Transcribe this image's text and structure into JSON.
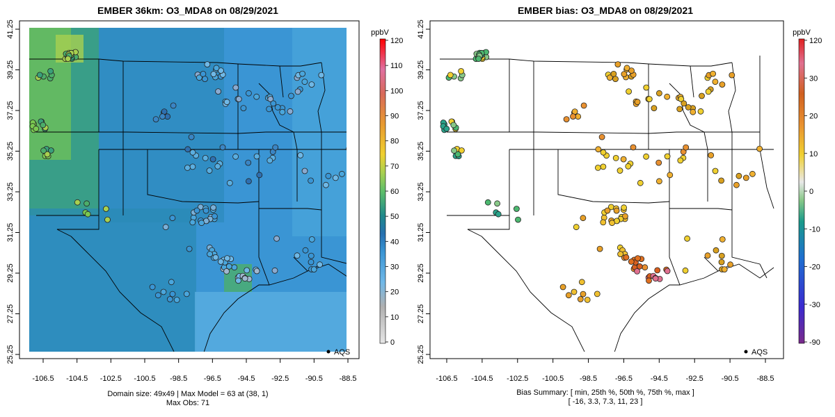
{
  "left": {
    "title": "EMBER 36km: O3_MDA8 on 08/29/2021",
    "colorbar_unit": "ppbV",
    "colorbar_ticks": [
      "0",
      "10",
      "20",
      "30",
      "40",
      "50",
      "60",
      "70",
      "80",
      "90",
      "100",
      "110",
      "120"
    ],
    "x_ticks": [
      "-106.5",
      "-104.5",
      "-102.5",
      "-100.5",
      "-98.5",
      "-96.5",
      "-94.5",
      "-92.5",
      "-90.5",
      "-88.5"
    ],
    "y_ticks": [
      "25.25",
      "27.25",
      "29.25",
      "31.25",
      "33.25",
      "35.25",
      "37.25",
      "39.25",
      "41.25"
    ],
    "legend_label": "AQS",
    "caption_line1": "Domain size: 49x49 | Max Model = 63 at (38, 1)",
    "caption_line2": "Max Obs: 71",
    "colors": {
      "green": "#5fbf6a",
      "blue": "#2e86c1",
      "lightblue": "#4aa6dc"
    }
  },
  "right": {
    "title": "EMBER bias: O3_MDA8 on 08/29/2021",
    "colorbar_unit": "ppbV",
    "colorbar_ticks": [
      "-90",
      "-30",
      "-20",
      "-10",
      "0",
      "10",
      "20",
      "30",
      "120"
    ],
    "x_ticks": [
      "-106.5",
      "-104.5",
      "-102.5",
      "-100.5",
      "-98.5",
      "-96.5",
      "-94.5",
      "-92.5",
      "-90.5",
      "-88.5"
    ],
    "y_ticks": [
      "25.25",
      "27.25",
      "29.25",
      "31.25",
      "33.25",
      "35.25",
      "37.25",
      "39.25",
      "41.25"
    ],
    "legend_label": "AQS",
    "caption_line1": "Bias Summary: [ min, 25th %, 50th %, 75th %, max ]",
    "caption_line2": "[ -16,  3.3,  7.3,  11,  23 ]",
    "colors": {
      "orange": "#e0862b",
      "yellow": "#f0d020",
      "teal": "#2aa38a"
    }
  }
}
